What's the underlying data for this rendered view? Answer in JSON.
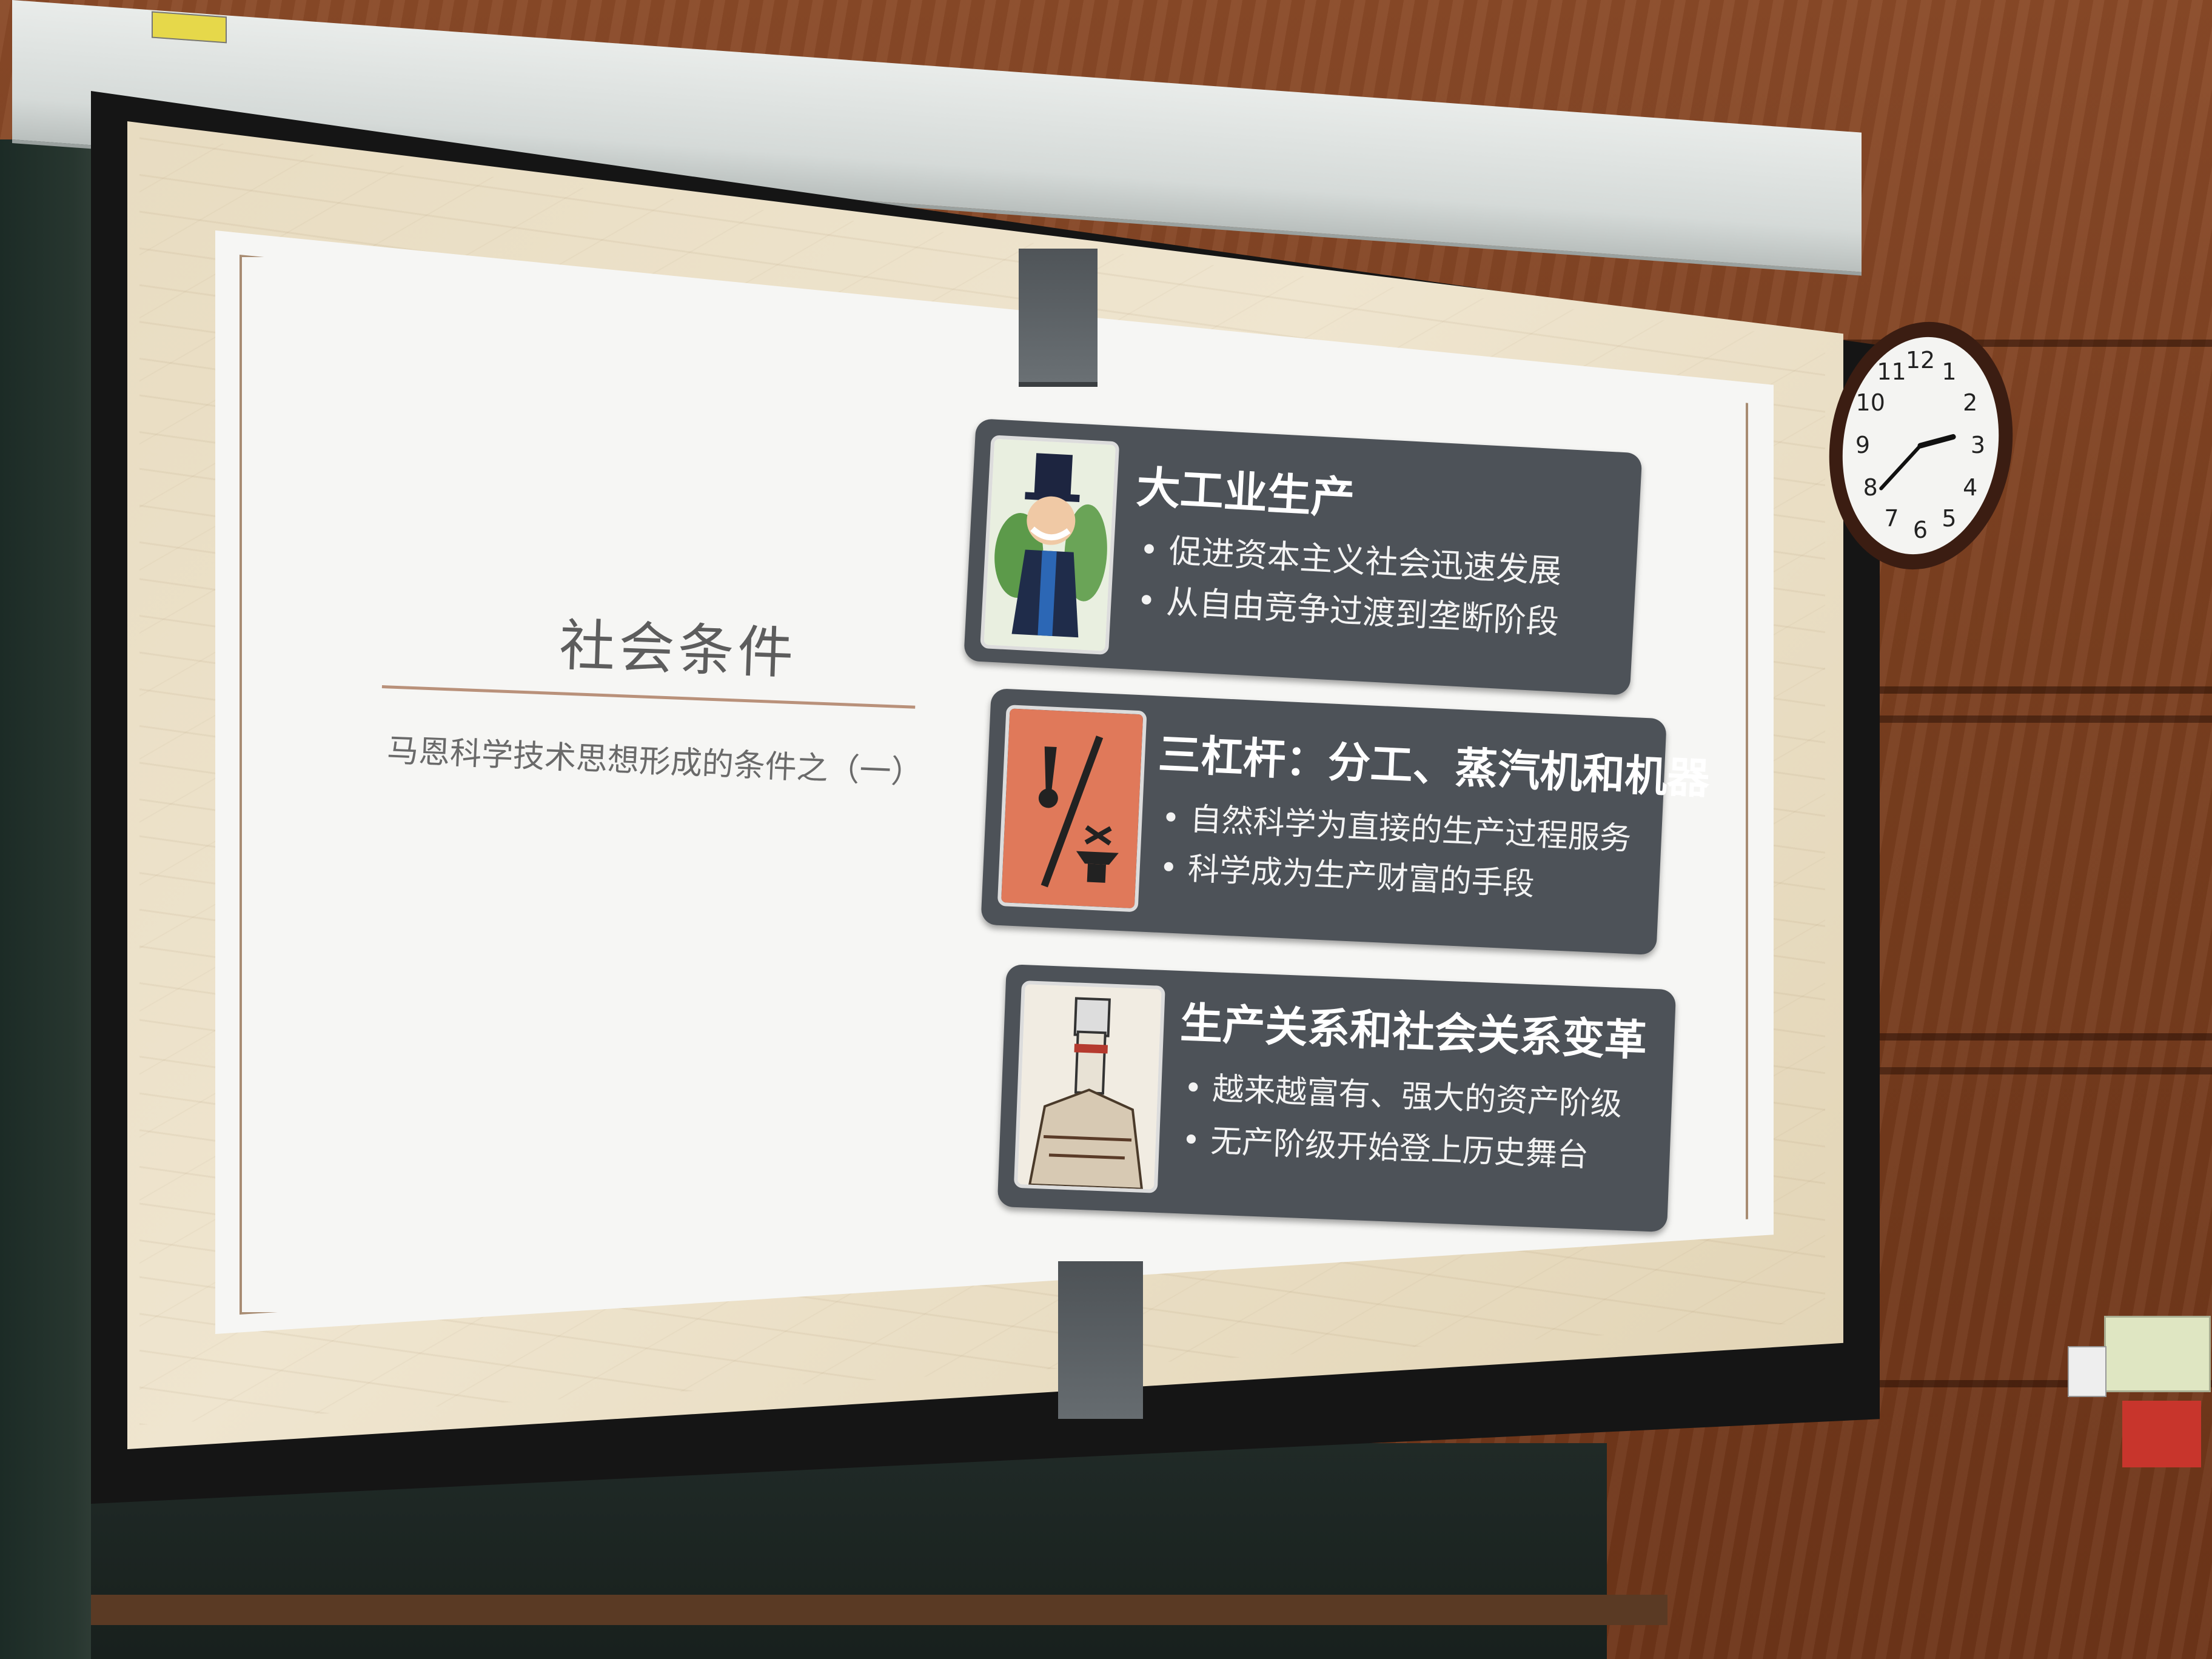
{
  "slide": {
    "section_title": "社会条件",
    "subtitle": "马恩科学技术思想形成的条件之（一）",
    "cards": [
      {
        "title": "大工业生产",
        "icon": "monopoly-man-icon",
        "bullets": [
          "促进资本主义社会迅速发展",
          "从自由竞争过渡到垄断阶段"
        ]
      },
      {
        "title": "三杠杆：分工、蒸汽机和机器",
        "icon": "pen-and-anvil-icon",
        "bullets": [
          "自然科学为直接的生产过程服务",
          "科学成为生产财富的手段"
        ]
      },
      {
        "title": "生产关系和社会关系变革",
        "icon": "raised-fist-icon",
        "bullets": [
          "越来越富有、强大的资产阶级",
          "无产阶级开始登上历史舞台"
        ]
      }
    ]
  },
  "clock": {
    "numbers": [
      "12",
      "1",
      "2",
      "3",
      "4",
      "5",
      "6",
      "7",
      "8",
      "9",
      "10",
      "11"
    ],
    "hour": 2,
    "minute": 39
  },
  "colors": {
    "card_bg": "#4d5258",
    "wall": "#7b3f1f",
    "accent_rule": "#b9917a",
    "icon_orange": "#e0795a"
  }
}
